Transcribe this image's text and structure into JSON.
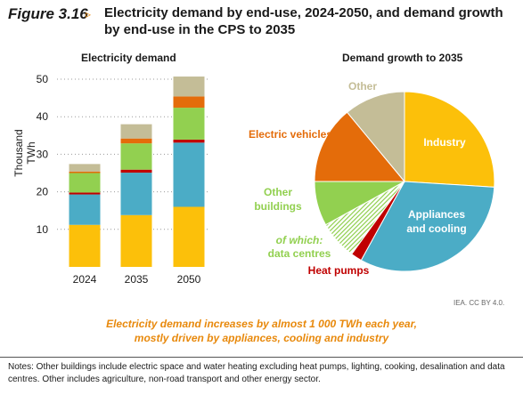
{
  "figure": {
    "label": "Figure 3.16",
    "arrow": "▹",
    "title": "Electricity demand by end-use, 2024-2050, and demand growth by end-use in the CPS to 2035"
  },
  "colors": {
    "industry": "#fcc00a",
    "appliances": "#4bacc6",
    "heat_pumps": "#c00000",
    "other_buildings": "#92d050",
    "electric_vehicles": "#e46c0a",
    "other": "#c4bd97"
  },
  "chart_data": [
    {
      "type": "bar",
      "stacked": true,
      "title": "Electricity demand",
      "ylabel": "Thousand TWh",
      "ylim": [
        0,
        50
      ],
      "yticks": [
        10,
        20,
        30,
        40,
        50
      ],
      "grid": "horizontal dotted",
      "categories": [
        "2024",
        "2035",
        "2050"
      ],
      "series": [
        {
          "key": "industry",
          "values": [
            11.2,
            13.8,
            16.0
          ]
        },
        {
          "key": "appliances",
          "values": [
            8.1,
            11.3,
            17.1
          ]
        },
        {
          "key": "heat_pumps",
          "values": [
            0.5,
            0.8,
            0.8
          ]
        },
        {
          "key": "other_buildings",
          "values": [
            5.2,
            7.0,
            8.5
          ]
        },
        {
          "key": "electric_vehicles",
          "values": [
            0.4,
            1.3,
            3.0
          ]
        },
        {
          "key": "other",
          "values": [
            2.0,
            3.8,
            5.3
          ]
        }
      ]
    },
    {
      "type": "pie",
      "title": "Demand growth to 2035",
      "slices": [
        {
          "key": "industry",
          "label": "Industry",
          "value": 26
        },
        {
          "key": "appliances",
          "label": "Appliances and cooling",
          "value": 32
        },
        {
          "key": "heat_pumps",
          "label": "Heat pumps",
          "value": 2
        },
        {
          "key": "data_centres",
          "label": "of which: data centres",
          "value": 7,
          "hatched": true
        },
        {
          "key": "other_buildings",
          "label": "Other buildings",
          "value": 8
        },
        {
          "key": "electric_vehicles",
          "label": "Electric vehicles",
          "value": 14
        },
        {
          "key": "other",
          "label": "Other",
          "value": 11
        }
      ],
      "labels": {
        "industry": "Industry",
        "appliances_l1": "Appliances",
        "appliances_l2": "and cooling",
        "heat_pumps": "Heat pumps",
        "data_centres_l1": "of which:",
        "data_centres_l2": "data centres",
        "other_buildings_l1": "Other",
        "other_buildings_l2": "buildings",
        "electric_vehicles": "Electric vehicles",
        "other": "Other"
      }
    }
  ],
  "credit": "IEA. CC BY 4.0.",
  "caption_line1": "Electricity demand increases by almost 1 000 TWh each year,",
  "caption_line2": "mostly driven by appliances, cooling and industry",
  "notes": "Notes: Other buildings include electric space and water heating excluding heat pumps, lighting, cooking, desalination and data centres. Other includes agriculture, non-road transport and other energy sector."
}
